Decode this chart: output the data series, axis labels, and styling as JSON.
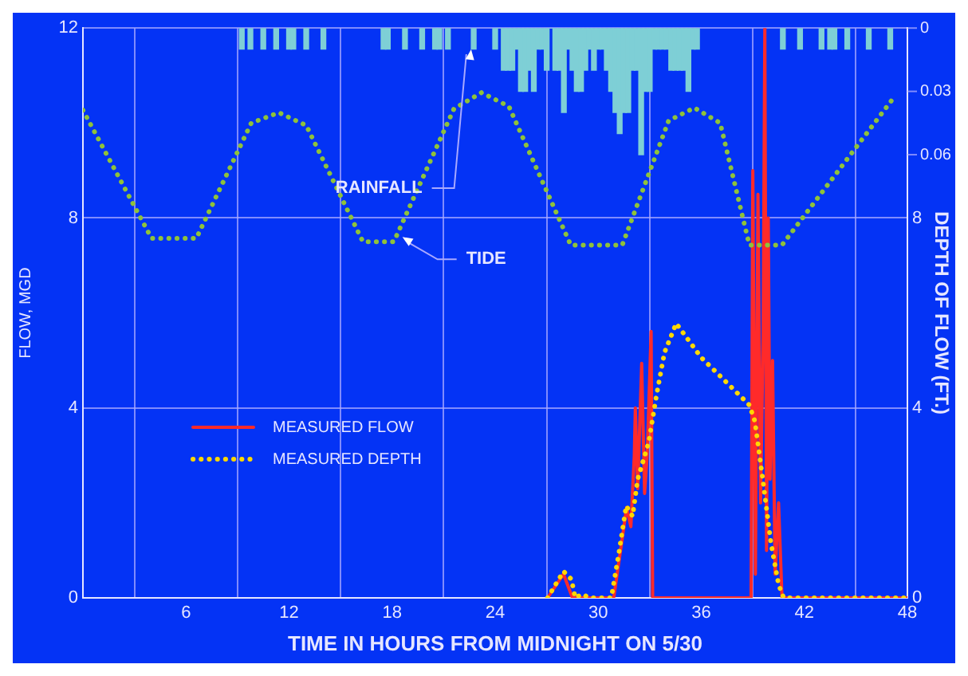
{
  "chart_data": {
    "type": "line",
    "xlabel": "TIME IN HOURS FROM MIDNIGHT ON 5/30",
    "ylabel": "FLOW, MGD",
    "y2label": "DEPTH OF FLOW (FT.)",
    "xlim": [
      0,
      48
    ],
    "xticks": [
      6,
      12,
      18,
      24,
      30,
      36,
      42,
      48
    ],
    "ylim": [
      0,
      12
    ],
    "yticks": [
      0,
      4,
      8,
      12
    ],
    "y2lim": [
      0,
      12
    ],
    "y2ticks": [
      0,
      4,
      8
    ],
    "y3lim": [
      0.27,
      0
    ],
    "y3ticks": [
      0,
      0.03,
      0.06
    ],
    "grid": true,
    "legend": "bottom left",
    "series": [
      {
        "name": "MEASURED FLOW",
        "color": "#ff2a2a",
        "line_style": "solid",
        "x": [
          27.05,
          27.98,
          28.5,
          30.9,
          31.3,
          31.65,
          31.9,
          32.1,
          32.16,
          32.3,
          32.53,
          32.7,
          32.85,
          33.08,
          33.17,
          38.9,
          39.0,
          39.15,
          39.3,
          39.45,
          39.6,
          39.7,
          39.8,
          39.9,
          40.0,
          40.15,
          40.3,
          40.5,
          40.7,
          48
        ],
        "values": [
          0,
          0.5,
          0,
          0,
          1.0,
          1.9,
          1.5,
          3.0,
          4.0,
          2.3,
          4.94,
          2.2,
          3.0,
          5.61,
          0,
          0,
          9.0,
          0.5,
          8.5,
          2.0,
          5.5,
          12.0,
          1.0,
          8.0,
          2.5,
          5.0,
          0.5,
          2.0,
          0,
          0
        ]
      },
      {
        "name": "MEASURED DEPTH",
        "color": "#ffd800",
        "line_style": "dotted",
        "axis": "y2",
        "x": [
          27.05,
          27.98,
          28.44,
          28.66,
          29.06,
          29.5,
          30.76,
          31.2,
          31.63,
          32.0,
          32.3,
          32.94,
          33.4,
          33.86,
          34.54,
          36.0,
          37.27,
          38.8,
          39.12,
          39.58,
          40.05,
          40.5,
          40.8,
          48
        ],
        "values": [
          0,
          0.56,
          0.39,
          0,
          0.08,
          0,
          0,
          0.94,
          1.94,
          1.72,
          2.5,
          3.28,
          4.28,
          5.17,
          5.78,
          5.06,
          4.61,
          4.06,
          3.72,
          2.5,
          1.17,
          0.28,
          0,
          0
        ]
      },
      {
        "color": "#8fc23a",
        "line_style": "dotted",
        "x": [
          0,
          4.0,
          6.6,
          9.8,
          11.4,
          13.0,
          16.3,
          18.1,
          21.6,
          23.2,
          24.8,
          28.4,
          31.4,
          34.1,
          35.6,
          37.1,
          38.8,
          40.7,
          47.3
        ],
        "values": [
          10.27,
          7.57,
          7.57,
          10.0,
          10.22,
          9.95,
          7.5,
          7.5,
          10.3,
          10.64,
          10.35,
          7.43,
          7.43,
          10.05,
          10.32,
          10.0,
          7.43,
          7.43,
          10.58
        ]
      },
      {
        "type": "bar",
        "axis": "y3",
        "color": "#7ecfd6",
        "x": [
          9.25,
          9.75,
          10.5,
          11.25,
          12.0,
          12.25,
          13.0,
          14.0,
          17.5,
          17.75,
          18.75,
          19.75,
          20.5,
          20.75,
          21.25,
          22.75,
          24.0,
          24.25,
          24.5,
          24.75,
          25.0,
          25.25,
          25.5,
          25.75,
          26.0,
          26.25,
          26.5,
          26.75,
          27.0,
          27.25,
          27.5,
          27.75,
          28.0,
          28.25,
          28.5,
          28.75,
          29.0,
          29.25,
          29.5,
          29.75,
          30.0,
          30.25,
          30.5,
          30.75,
          31.0,
          31.25,
          31.5,
          31.75,
          32.0,
          32.25,
          32.5,
          32.75,
          33.0,
          33.25,
          33.5,
          33.75,
          34.0,
          34.25,
          34.5,
          34.75,
          35.0,
          35.25,
          35.5,
          35.75,
          40.75,
          41.75,
          43.0,
          43.5,
          43.75,
          44.5,
          45.75,
          47.0
        ],
        "values": [
          0.01,
          0.01,
          0.01,
          0.01,
          0.01,
          0.01,
          0.01,
          0.01,
          0.01,
          0.01,
          0.01,
          0.01,
          0.01,
          0.01,
          0.01,
          0.01,
          0.01,
          0,
          0.02,
          0.02,
          0.02,
          0.01,
          0.03,
          0.03,
          0.02,
          0.03,
          0.01,
          0.01,
          0.02,
          0,
          0.02,
          0.02,
          0.04,
          0.01,
          0.02,
          0.03,
          0.03,
          0.02,
          0.01,
          0.02,
          0.01,
          0.01,
          0.02,
          0.03,
          0.04,
          0.05,
          0.04,
          0.04,
          0.02,
          0.02,
          0.06,
          0.03,
          0.03,
          0.01,
          0.01,
          0.01,
          0.01,
          0.02,
          0.02,
          0.02,
          0.02,
          0.03,
          0.01,
          0.01,
          0.01,
          0.01,
          0.01,
          0.01,
          0.01,
          0.01,
          0.01,
          0.01
        ]
      }
    ],
    "annotations": [
      {
        "text": "TIDE",
        "x": 18.6,
        "y": 7.6
      },
      {
        "text": "RAINFALL",
        "x": 22.6,
        "y": 11.55
      }
    ]
  }
}
